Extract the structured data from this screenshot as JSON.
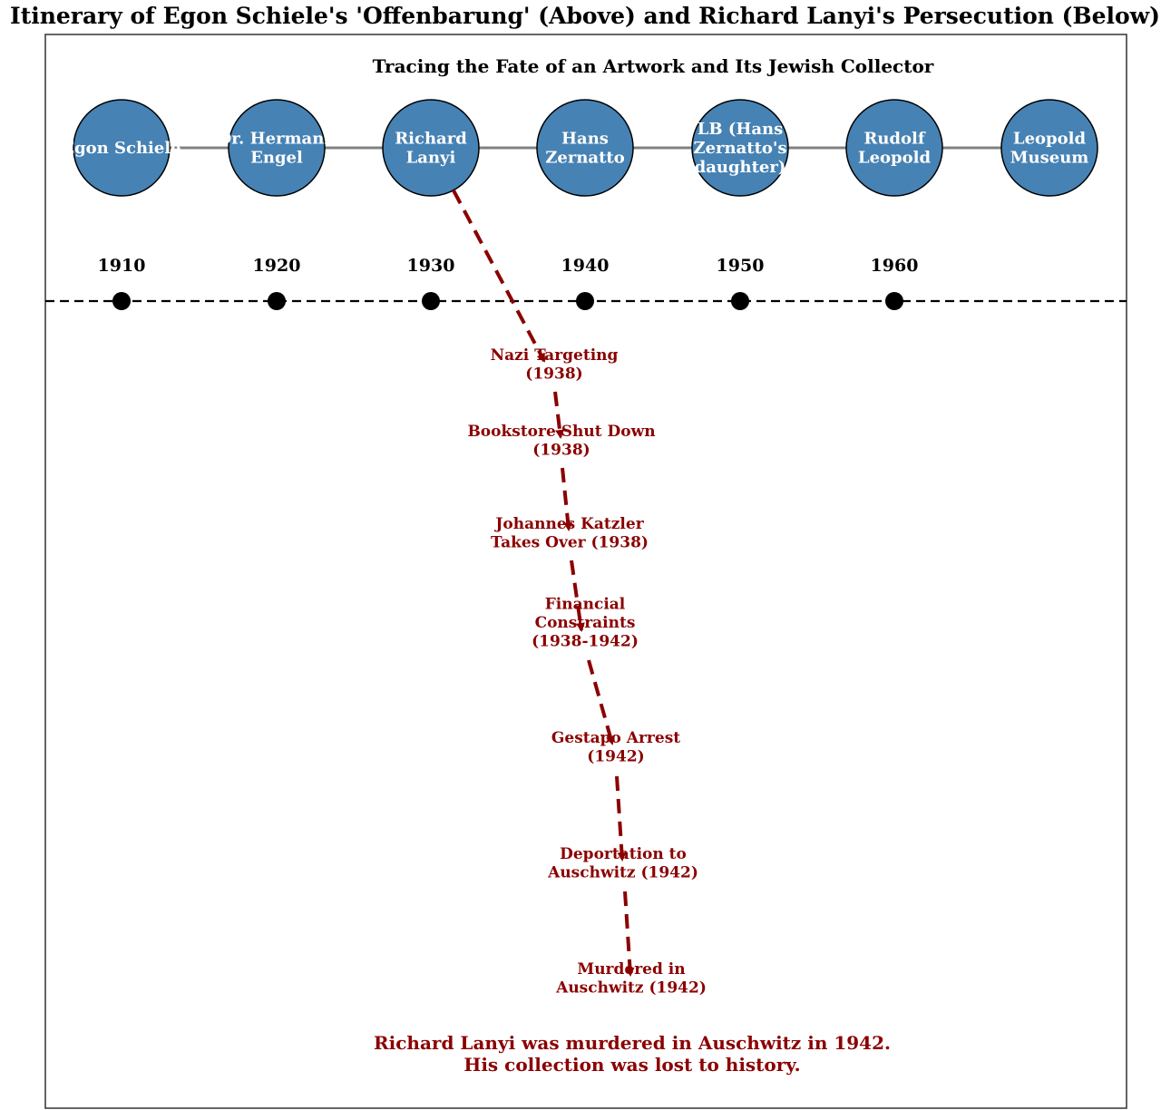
{
  "main_title": "Itinerary of Egon Schiele's 'Offenbarung' (Above) and Richard Lanyi's Persecution (Below)",
  "subtitle": "Tracing the Fate of an Artwork and Its Jewish Collector",
  "owners": [
    {
      "label": [
        "Egon Schiele"
      ]
    },
    {
      "label": [
        "Dr. Hermann",
        "Engel"
      ]
    },
    {
      "label": [
        "Richard",
        "Lanyi"
      ]
    },
    {
      "label": [
        "Hans",
        "Zernatto"
      ]
    },
    {
      "label": [
        "LB (Hans",
        "Zernatto's",
        "daughter)"
      ]
    },
    {
      "label": [
        "Rudolf",
        "Leopold"
      ]
    },
    {
      "label": [
        "Leopold",
        "Museum"
      ]
    }
  ],
  "years": [
    "1910",
    "1920",
    "1930",
    "1940",
    "1950",
    "1960"
  ],
  "events": [
    {
      "label": [
        "Nazi Targeting",
        "(1938)"
      ]
    },
    {
      "label": [
        "Bookstore Shut Down",
        "(1938)"
      ]
    },
    {
      "label": [
        "Johannes Katzler",
        "Takes Over (1938)"
      ]
    },
    {
      "label": [
        "Financial",
        "Constraints",
        "(1938-1942)"
      ]
    },
    {
      "label": [
        "Gestapo Arrest",
        "(1942)"
      ]
    },
    {
      "label": [
        "Deportation to",
        "Auschwitz (1942)"
      ]
    },
    {
      "label": [
        "Murdered in",
        "Auschwitz (1942)"
      ]
    }
  ],
  "conclusion": [
    "Richard Lanyi was murdered in Auschwitz in 1942.",
    "His collection was lost to history."
  ],
  "colors": {
    "node_fill": "#4682b4",
    "node_stroke": "#000000",
    "connector": "#808080",
    "persecution": "#8b0000",
    "timeline": "#000000"
  }
}
